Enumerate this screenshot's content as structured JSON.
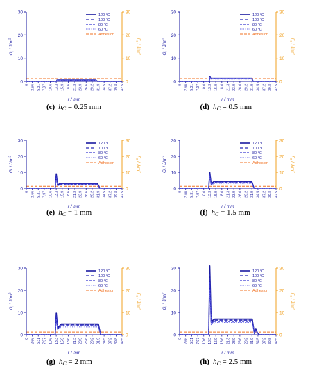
{
  "figure": {
    "colors": {
      "axis_left": "#1a1aa0",
      "axis_right": "#f0a020",
      "series": [
        "#1a1aa0",
        "#2a2ab8",
        "#3a3ad0",
        "#6a6ae8"
      ],
      "adhesion": "#f07020"
    },
    "x_ticks": [
      "0",
      "2.66",
      "5.31",
      "7.97",
      "10.6",
      "13.3",
      "15.9",
      "18.6",
      "21.3",
      "23.9",
      "26.6",
      "29.2",
      "31.9",
      "34.5",
      "37.2",
      "39.8",
      "42.5"
    ],
    "y_ticks_left": [
      "0",
      "10",
      "20",
      "30"
    ],
    "y_ticks_right": [
      "0",
      "10",
      "20",
      "30"
    ],
    "xlabel": "r / mm",
    "ylabel_left": "G",
    "ylabel_left_sub": "r",
    "ylabel_left_unit": " / J/m",
    "ylabel_left_sup": "2",
    "ylabel_right": "Γ",
    "ylabel_right_sub": "a",
    "ylabel_right_unit": " / J/m",
    "ylabel_right_sup": "2",
    "legend": [
      "120 °C",
      "100 °C",
      "80 °C",
      "60 °C",
      "Adhesion"
    ]
  },
  "captions": [
    {
      "letter": "(c)",
      "var": "h",
      "sub": "C",
      "rest": " = 0.25 mm"
    },
    {
      "letter": "(d)",
      "var": "h",
      "sub": "C",
      "rest": " = 0.5 mm"
    },
    {
      "letter": "(e)",
      "var": "h",
      "sub": "C",
      "rest": " = 1 mm"
    },
    {
      "letter": "(f)",
      "var": "h",
      "sub": "C",
      "rest": " = 1.5 mm"
    },
    {
      "letter": "(g)",
      "var": "h",
      "sub": "C",
      "rest": " = 2 mm"
    },
    {
      "letter": "(h)",
      "var": "h",
      "sub": "C",
      "rest": " = 2.5 mm"
    }
  ],
  "chart_data": [
    {
      "type": "line",
      "panel": "c",
      "xlabel": "r / mm",
      "ylabel": "Gr / J/m2",
      "y2label": "Γa / J/m2",
      "xlim": [
        0,
        42.5
      ],
      "ylim": [
        0,
        30
      ],
      "legend_position": "top-right",
      "series": [
        {
          "name": "120 °C",
          "x": [
            0,
            13.0,
            13.4,
            13.6,
            30.8,
            31.6,
            42.5
          ],
          "values": [
            0,
            0,
            0,
            0.6,
            0.6,
            0,
            0
          ]
        },
        {
          "name": "100 °C",
          "x": [
            0,
            13.0,
            13.4,
            13.6,
            30.8,
            31.6,
            42.5
          ],
          "values": [
            0,
            0,
            0,
            0.55,
            0.55,
            0,
            0
          ]
        },
        {
          "name": "80 °C",
          "x": [
            0,
            13.0,
            13.4,
            13.6,
            30.8,
            31.6,
            42.5
          ],
          "values": [
            0,
            0,
            0,
            0.5,
            0.5,
            0,
            0
          ]
        },
        {
          "name": "60 °C",
          "x": [
            0,
            13.0,
            13.4,
            13.6,
            30.8,
            31.6,
            42.5
          ],
          "values": [
            0,
            0,
            0,
            0.45,
            0.45,
            0,
            0
          ]
        }
      ],
      "adhesion": 1.2
    },
    {
      "type": "line",
      "panel": "d",
      "xlabel": "r / mm",
      "ylabel": "Gr / J/m2",
      "y2label": "Γa / J/m2",
      "xlim": [
        0,
        42.5
      ],
      "ylim": [
        0,
        30
      ],
      "legend_position": "top-right",
      "series": [
        {
          "name": "120 °C",
          "x": [
            0,
            13.0,
            13.4,
            13.8,
            14.4,
            31.8,
            32.4,
            42.5
          ],
          "values": [
            0,
            0,
            2.0,
            1.2,
            1.3,
            1.3,
            0,
            0
          ]
        },
        {
          "name": "100 °C",
          "x": [
            0,
            13.0,
            13.4,
            13.8,
            14.4,
            31.8,
            32.4,
            42.5
          ],
          "values": [
            0,
            0,
            1.9,
            1.1,
            1.2,
            1.2,
            0,
            0
          ]
        },
        {
          "name": "80 °C",
          "x": [
            0,
            13.0,
            13.4,
            13.8,
            14.4,
            31.8,
            32.4,
            42.5
          ],
          "values": [
            0,
            0,
            1.8,
            1.0,
            1.1,
            1.1,
            0,
            0
          ]
        },
        {
          "name": "60 °C",
          "x": [
            0,
            13.0,
            13.4,
            13.8,
            14.4,
            31.8,
            32.4,
            42.5
          ],
          "values": [
            0,
            0,
            1.7,
            0.9,
            1.0,
            1.0,
            0,
            0
          ]
        }
      ],
      "adhesion": 1.2
    },
    {
      "type": "line",
      "panel": "e",
      "xlabel": "r / mm",
      "ylabel": "Gr / J/m2",
      "y2label": "Γa / J/m2",
      "xlim": [
        0,
        42.5
      ],
      "ylim": [
        0,
        30
      ],
      "legend_position": "top-right",
      "series": [
        {
          "name": "120 °C",
          "x": [
            0,
            12.8,
            13.3,
            13.9,
            15.0,
            31.6,
            32.6,
            42.5
          ],
          "values": [
            0,
            0,
            9.0,
            2.0,
            3.0,
            3.0,
            0,
            0
          ]
        },
        {
          "name": "100 °C",
          "x": [
            0,
            12.8,
            13.3,
            13.9,
            15.0,
            31.6,
            32.6,
            42.5
          ],
          "values": [
            0,
            0,
            8.0,
            1.8,
            2.7,
            2.7,
            0,
            0
          ]
        },
        {
          "name": "80 °C",
          "x": [
            0,
            12.8,
            13.3,
            13.9,
            15.0,
            31.6,
            32.6,
            42.5
          ],
          "values": [
            0,
            0,
            7.0,
            1.6,
            2.4,
            2.4,
            0,
            0
          ]
        },
        {
          "name": "60 °C",
          "x": [
            0,
            12.8,
            13.3,
            13.9,
            15.0,
            31.6,
            32.6,
            42.5
          ],
          "values": [
            0,
            0,
            6.0,
            1.4,
            2.1,
            2.1,
            0,
            0
          ]
        }
      ],
      "adhesion": 1.2
    },
    {
      "type": "line",
      "panel": "f",
      "xlabel": "r / mm",
      "ylabel": "Gr / J/m2",
      "y2label": "Γa / J/m2",
      "xlim": [
        0,
        42.5
      ],
      "ylim": [
        0,
        30
      ],
      "legend_position": "top-right",
      "series": [
        {
          "name": "120 °C",
          "x": [
            0,
            12.8,
            13.3,
            13.9,
            15.2,
            31.8,
            32.8,
            42.5
          ],
          "values": [
            0,
            0,
            10.0,
            2.8,
            4.3,
            4.3,
            0,
            0
          ]
        },
        {
          "name": "100 °C",
          "x": [
            0,
            12.8,
            13.3,
            13.9,
            15.2,
            31.8,
            32.8,
            42.5
          ],
          "values": [
            0,
            0,
            9.0,
            2.5,
            3.9,
            3.9,
            0,
            0
          ]
        },
        {
          "name": "80 °C",
          "x": [
            0,
            12.8,
            13.3,
            13.9,
            15.2,
            31.8,
            32.8,
            42.5
          ],
          "values": [
            0,
            0,
            8.0,
            2.2,
            3.5,
            3.5,
            0,
            0
          ]
        },
        {
          "name": "60 °C",
          "x": [
            0,
            12.8,
            13.3,
            13.9,
            15.2,
            31.8,
            32.8,
            42.5
          ],
          "values": [
            0,
            0,
            7.0,
            1.9,
            3.0,
            3.0,
            0,
            0
          ]
        }
      ],
      "adhesion": 1.2
    },
    {
      "type": "line",
      "panel": "g",
      "xlabel": "r / mm",
      "ylabel": "Gr / J/m2",
      "y2label": "Γa / J/m2",
      "xlim": [
        0,
        42.5
      ],
      "ylim": [
        0,
        30
      ],
      "legend_position": "top-right",
      "series": [
        {
          "name": "120 °C",
          "x": [
            0,
            12.8,
            13.3,
            13.9,
            15.5,
            32.0,
            33.0,
            42.5
          ],
          "values": [
            0,
            0,
            10.0,
            3.0,
            4.8,
            4.8,
            0,
            0
          ]
        },
        {
          "name": "100 °C",
          "x": [
            0,
            12.8,
            13.3,
            13.9,
            15.5,
            32.0,
            33.0,
            42.5
          ],
          "values": [
            0,
            0,
            9.0,
            2.7,
            4.4,
            4.4,
            0,
            0
          ]
        },
        {
          "name": "80 °C",
          "x": [
            0,
            12.8,
            13.3,
            13.9,
            15.5,
            32.0,
            33.0,
            42.5
          ],
          "values": [
            0,
            0,
            8.0,
            2.4,
            4.0,
            4.0,
            0,
            0
          ]
        },
        {
          "name": "60 °C",
          "x": [
            0,
            12.8,
            13.3,
            13.9,
            15.5,
            32.0,
            33.0,
            42.5
          ],
          "values": [
            0,
            0,
            7.0,
            2.1,
            3.5,
            3.5,
            0,
            0
          ]
        }
      ],
      "adhesion": 1.2
    },
    {
      "type": "line",
      "panel": "h",
      "xlabel": "r / mm",
      "ylabel": "Gr / J/m2",
      "y2label": "Γa / J/m2",
      "xlim": [
        0,
        42.5
      ],
      "ylim": [
        0,
        30
      ],
      "legend_position": "top-right",
      "series": [
        {
          "name": "120 °C",
          "x": [
            0,
            12.8,
            13.3,
            13.9,
            15.5,
            32.0,
            33.0,
            33.6,
            34.2,
            35.2,
            42.5
          ],
          "values": [
            0,
            0,
            31.0,
            6.0,
            7.0,
            7.0,
            0.5,
            2.8,
            1.0,
            0,
            0
          ]
        },
        {
          "name": "100 °C",
          "x": [
            0,
            12.8,
            13.3,
            13.9,
            15.5,
            32.0,
            33.0,
            33.6,
            34.2,
            35.2,
            42.5
          ],
          "values": [
            0,
            0,
            27.0,
            5.5,
            6.5,
            6.5,
            0.5,
            2.4,
            0.9,
            0,
            0
          ]
        },
        {
          "name": "80 °C",
          "x": [
            0,
            12.8,
            13.3,
            13.9,
            15.5,
            32.0,
            33.0,
            33.6,
            34.2,
            35.2,
            42.5
          ],
          "values": [
            0,
            0,
            24.0,
            5.0,
            6.0,
            6.0,
            0.5,
            2.0,
            0.8,
            0,
            0
          ]
        },
        {
          "name": "60 °C",
          "x": [
            0,
            12.8,
            13.3,
            13.9,
            15.5,
            32.0,
            33.0,
            33.6,
            34.2,
            35.2,
            42.5
          ],
          "values": [
            0,
            0,
            20.0,
            4.5,
            5.5,
            5.5,
            0.5,
            1.6,
            0.7,
            0,
            0
          ]
        }
      ],
      "adhesion": 1.2
    }
  ]
}
